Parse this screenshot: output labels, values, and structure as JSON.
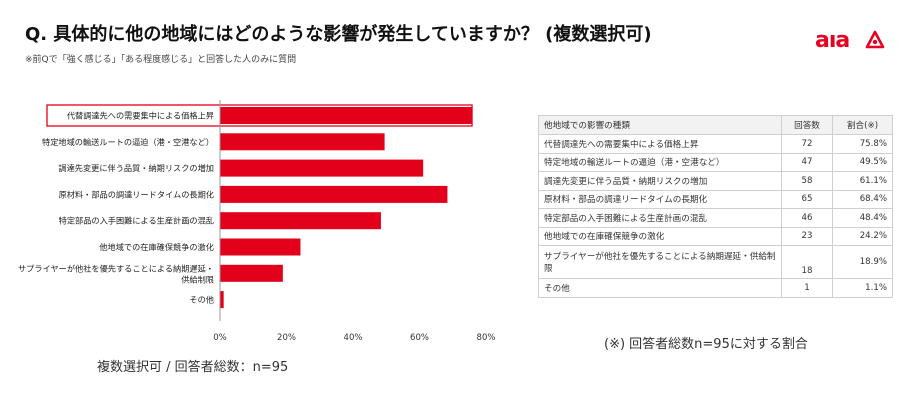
{
  "header": {
    "title": "Q. 具体的に他の地域にはどのような影響が発生していますか？ (複数選択可)",
    "note": "※前Qで「強く感じる」「ある程度感じる」と回答した人のみに質問",
    "logo_text": "aıa"
  },
  "chart_data": {
    "type": "bar",
    "orientation": "horizontal",
    "categories": [
      "代替調達先への需要集中による価格上昇",
      "特定地域の輸送ルートの逼迫（港・空港など）",
      "調達先変更に伴う品質・納期リスクの増加",
      "原材料・部品の調達リードタイムの長期化",
      "特定部品の入手困難による生産計画の混乱",
      "他地域での在庫確保競争の激化",
      "サプライヤーが他社を優先することによる納期遅延・供給制限",
      "その他"
    ],
    "values": [
      75.8,
      49.5,
      61.1,
      68.4,
      48.4,
      24.2,
      18.9,
      1.1
    ],
    "highlighted_category": "代替調達先への需要集中による価格上昇",
    "x_ticks": [
      "0%",
      "20%",
      "40%",
      "60%",
      "80%"
    ],
    "xlim": [
      0,
      80
    ],
    "bar_color": "#e3001b",
    "caption": "複数選択可 / 回答者総数：n=95"
  },
  "table": {
    "headers": [
      "他地域での影響の種類",
      "回答数",
      "割合(※)"
    ],
    "rows": [
      {
        "label": "代替調達先への需要集中による価格上昇",
        "count": "72",
        "pct": "75.8%"
      },
      {
        "label": "特定地域の輸送ルートの逼迫（港・空港など）",
        "count": "47",
        "pct": "49.5%"
      },
      {
        "label": "調達先変更に伴う品質・納期リスクの増加",
        "count": "58",
        "pct": "61.1%"
      },
      {
        "label": "原材料・部品の調達リードタイムの長期化",
        "count": "65",
        "pct": "68.4%"
      },
      {
        "label": "特定部品の入手困難による生産計画の混乱",
        "count": "46",
        "pct": "48.4%"
      },
      {
        "label": "他地域での在庫確保競争の激化",
        "count": "23",
        "pct": "24.2%"
      },
      {
        "label": "サプライヤーが他社を優先することによる納期遅延・供給制限",
        "count": "18",
        "pct": "18.9%"
      },
      {
        "label": "その他",
        "count": "1",
        "pct": "1.1%"
      }
    ],
    "caption": "(※) 回答者総数n=95に対する割合"
  }
}
